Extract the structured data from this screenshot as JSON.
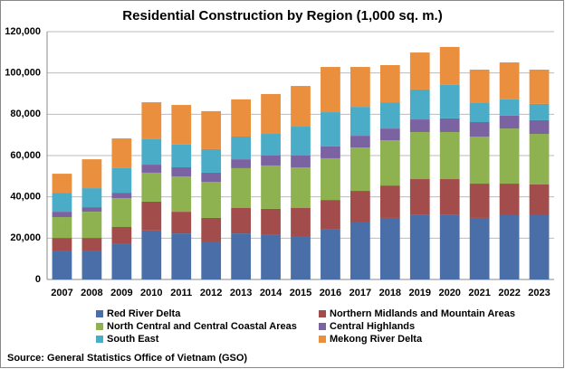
{
  "chart_data": {
    "type": "stacked-bar",
    "title": "Residential Construction by Region (1,000 sq. m.)",
    "source": "Source: General Statistics Office of Vietnam (GSO)",
    "categories": [
      "2007",
      "2008",
      "2009",
      "2010",
      "2011",
      "2012",
      "2013",
      "2014",
      "2015",
      "2016",
      "2017",
      "2018",
      "2019",
      "2020",
      "2021",
      "2022",
      "2023"
    ],
    "series": [
      {
        "name": "Red River Delta",
        "color": "#4a6fa8",
        "values": [
          14000,
          13600,
          17500,
          23700,
          22300,
          18400,
          22300,
          21500,
          20600,
          24500,
          27600,
          29800,
          31500,
          31500,
          29800,
          31100,
          31100
        ]
      },
      {
        "name": "Northern Midlands and Mountain Areas",
        "color": "#a24d4b",
        "values": [
          6100,
          6500,
          7900,
          14000,
          10500,
          11400,
          12300,
          12700,
          14000,
          14000,
          15300,
          15700,
          17100,
          17100,
          16600,
          15300,
          14900
        ]
      },
      {
        "name": "North Central and Central Coastal Areas",
        "color": "#8db24f",
        "values": [
          10100,
          12700,
          14000,
          14000,
          17100,
          17500,
          19300,
          21000,
          19700,
          20200,
          21000,
          21900,
          22800,
          22800,
          22800,
          26700,
          24500
        ]
      },
      {
        "name": "Central Highlands",
        "color": "#7b62a1",
        "values": [
          2600,
          2200,
          2600,
          3900,
          4400,
          4400,
          4300,
          4800,
          5700,
          5700,
          5700,
          5700,
          6100,
          6600,
          7000,
          6200,
          6600
        ]
      },
      {
        "name": "South East",
        "color": "#4aacc6",
        "values": [
          9200,
          9200,
          11900,
          12300,
          11000,
          11400,
          11000,
          10500,
          14000,
          16600,
          14000,
          12700,
          14500,
          16200,
          9200,
          7900,
          7900
        ]
      },
      {
        "name": "Mekong River Delta",
        "color": "#e98f3e",
        "values": [
          9200,
          14000,
          14400,
          17900,
          19200,
          18400,
          18000,
          19300,
          19700,
          21900,
          19300,
          18000,
          17900,
          18400,
          16200,
          17900,
          16600
        ]
      }
    ],
    "ylim": [
      0,
      120000
    ],
    "yticks": [
      0,
      {
        "value": 20000,
        "label": "20,000"
      },
      {
        "value": 40000,
        "label": "40,000"
      },
      {
        "value": 60000,
        "label": "60,000"
      },
      {
        "value": 80000,
        "label": "80,000"
      },
      {
        "value": 100000,
        "label": "100,000"
      },
      {
        "value": 120000,
        "label": "120,000"
      }
    ],
    "grid": true,
    "legend": "bottom"
  }
}
